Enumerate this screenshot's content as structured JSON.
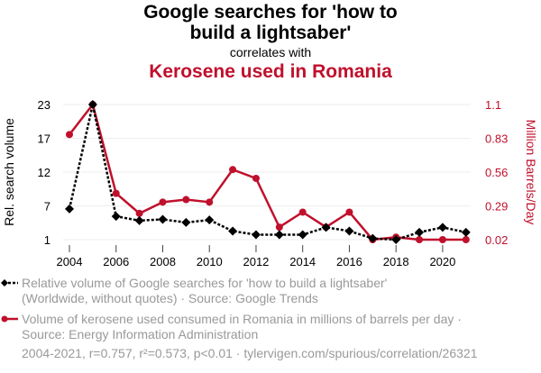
{
  "title": "Google searches for 'how to build a lightsaber'",
  "subtitle": "correlates with",
  "title2": "Kerosene used in Romania",
  "colors": {
    "series1": "#000000",
    "series2": "#c0102c",
    "grid": "#eeeeee",
    "text_muted": "#999999"
  },
  "chart_data": {
    "type": "line",
    "x": [
      2004,
      2005,
      2006,
      2007,
      2008,
      2009,
      2010,
      2011,
      2012,
      2013,
      2014,
      2015,
      2016,
      2017,
      2018,
      2019,
      2020,
      2021
    ],
    "xticks": [
      "2004",
      "2006",
      "2008",
      "2010",
      "2012",
      "2014",
      "2016",
      "2018",
      "2020"
    ],
    "ylabel": "Rel. search volume",
    "ylim": [
      1,
      23
    ],
    "yticks": [
      "1",
      "7",
      "12",
      "17",
      "23"
    ],
    "y2label": "Million Barrels/Day",
    "y2lim": [
      0.02,
      1.1
    ],
    "y2ticks": [
      "0.02",
      "0.29",
      "0.56",
      "0.83",
      "1.1"
    ],
    "grid": true,
    "series": [
      {
        "name": "Relative volume of Google searches for 'how to build a lightsaber'",
        "axis": "left",
        "style": "dotted",
        "marker": "diamond",
        "values": [
          6,
          23,
          4.8,
          4.1,
          4.3,
          3.8,
          4.2,
          2.4,
          1.8,
          1.8,
          1.8,
          3,
          2.4,
          1.2,
          1,
          2.2,
          3,
          2.2
        ]
      },
      {
        "name": "Volume of kerosene used consumed in Romania in millions of barrels per day",
        "axis": "right",
        "style": "solid",
        "marker": "circle",
        "values": [
          0.86,
          1.1,
          0.39,
          0.23,
          0.32,
          0.34,
          0.32,
          0.58,
          0.51,
          0.12,
          0.24,
          0.12,
          0.24,
          0.02,
          0.04,
          0.02,
          0.02,
          0.02
        ]
      }
    ]
  },
  "legend": {
    "s1_line1": "Relative volume of Google searches for 'how to build a lightsaber'",
    "s1_line2": "(Worldwide, without quotes) · Source: Google Trends",
    "s2_line1": "Volume of kerosene used consumed in Romania in millions of barrels per day ·",
    "s2_line2": "Source: Energy Information Administration"
  },
  "footer": "2004-2021, r=0.757, r²=0.573, p<0.01 · tylervigen.com/spurious/correlation/26321"
}
